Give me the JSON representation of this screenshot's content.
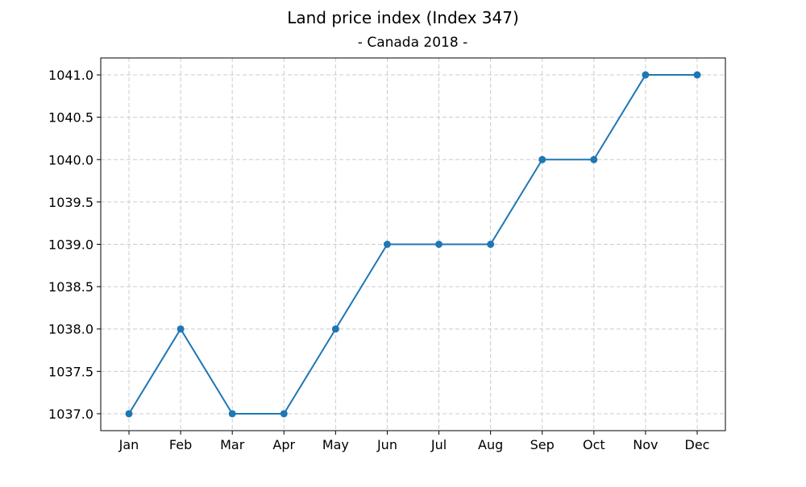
{
  "chart_data": {
    "type": "line",
    "title": "Land price index (Index 347)",
    "subtitle": "- Canada 2018 -",
    "xlabel": "",
    "ylabel": "",
    "categories": [
      "Jan",
      "Feb",
      "Mar",
      "Apr",
      "May",
      "Jun",
      "Jul",
      "Aug",
      "Sep",
      "Oct",
      "Nov",
      "Dec"
    ],
    "series": [
      {
        "values": [
          1037.0,
          1038.0,
          1037.0,
          1037.0,
          1038.0,
          1039.0,
          1039.0,
          1039.0,
          1040.0,
          1040.0,
          1041.0,
          1041.0
        ],
        "color": "#1f77b4"
      }
    ],
    "yticks": [
      1037.0,
      1037.5,
      1038.0,
      1038.5,
      1039.0,
      1039.5,
      1040.0,
      1040.5,
      1041.0
    ],
    "ytick_labels": [
      "1037.0",
      "1037.5",
      "1038.0",
      "1038.5",
      "1039.0",
      "1039.5",
      "1040.0",
      "1040.5",
      "1041.0"
    ],
    "ylim": [
      1036.8,
      1041.2
    ],
    "grid": true,
    "legend": "none"
  }
}
